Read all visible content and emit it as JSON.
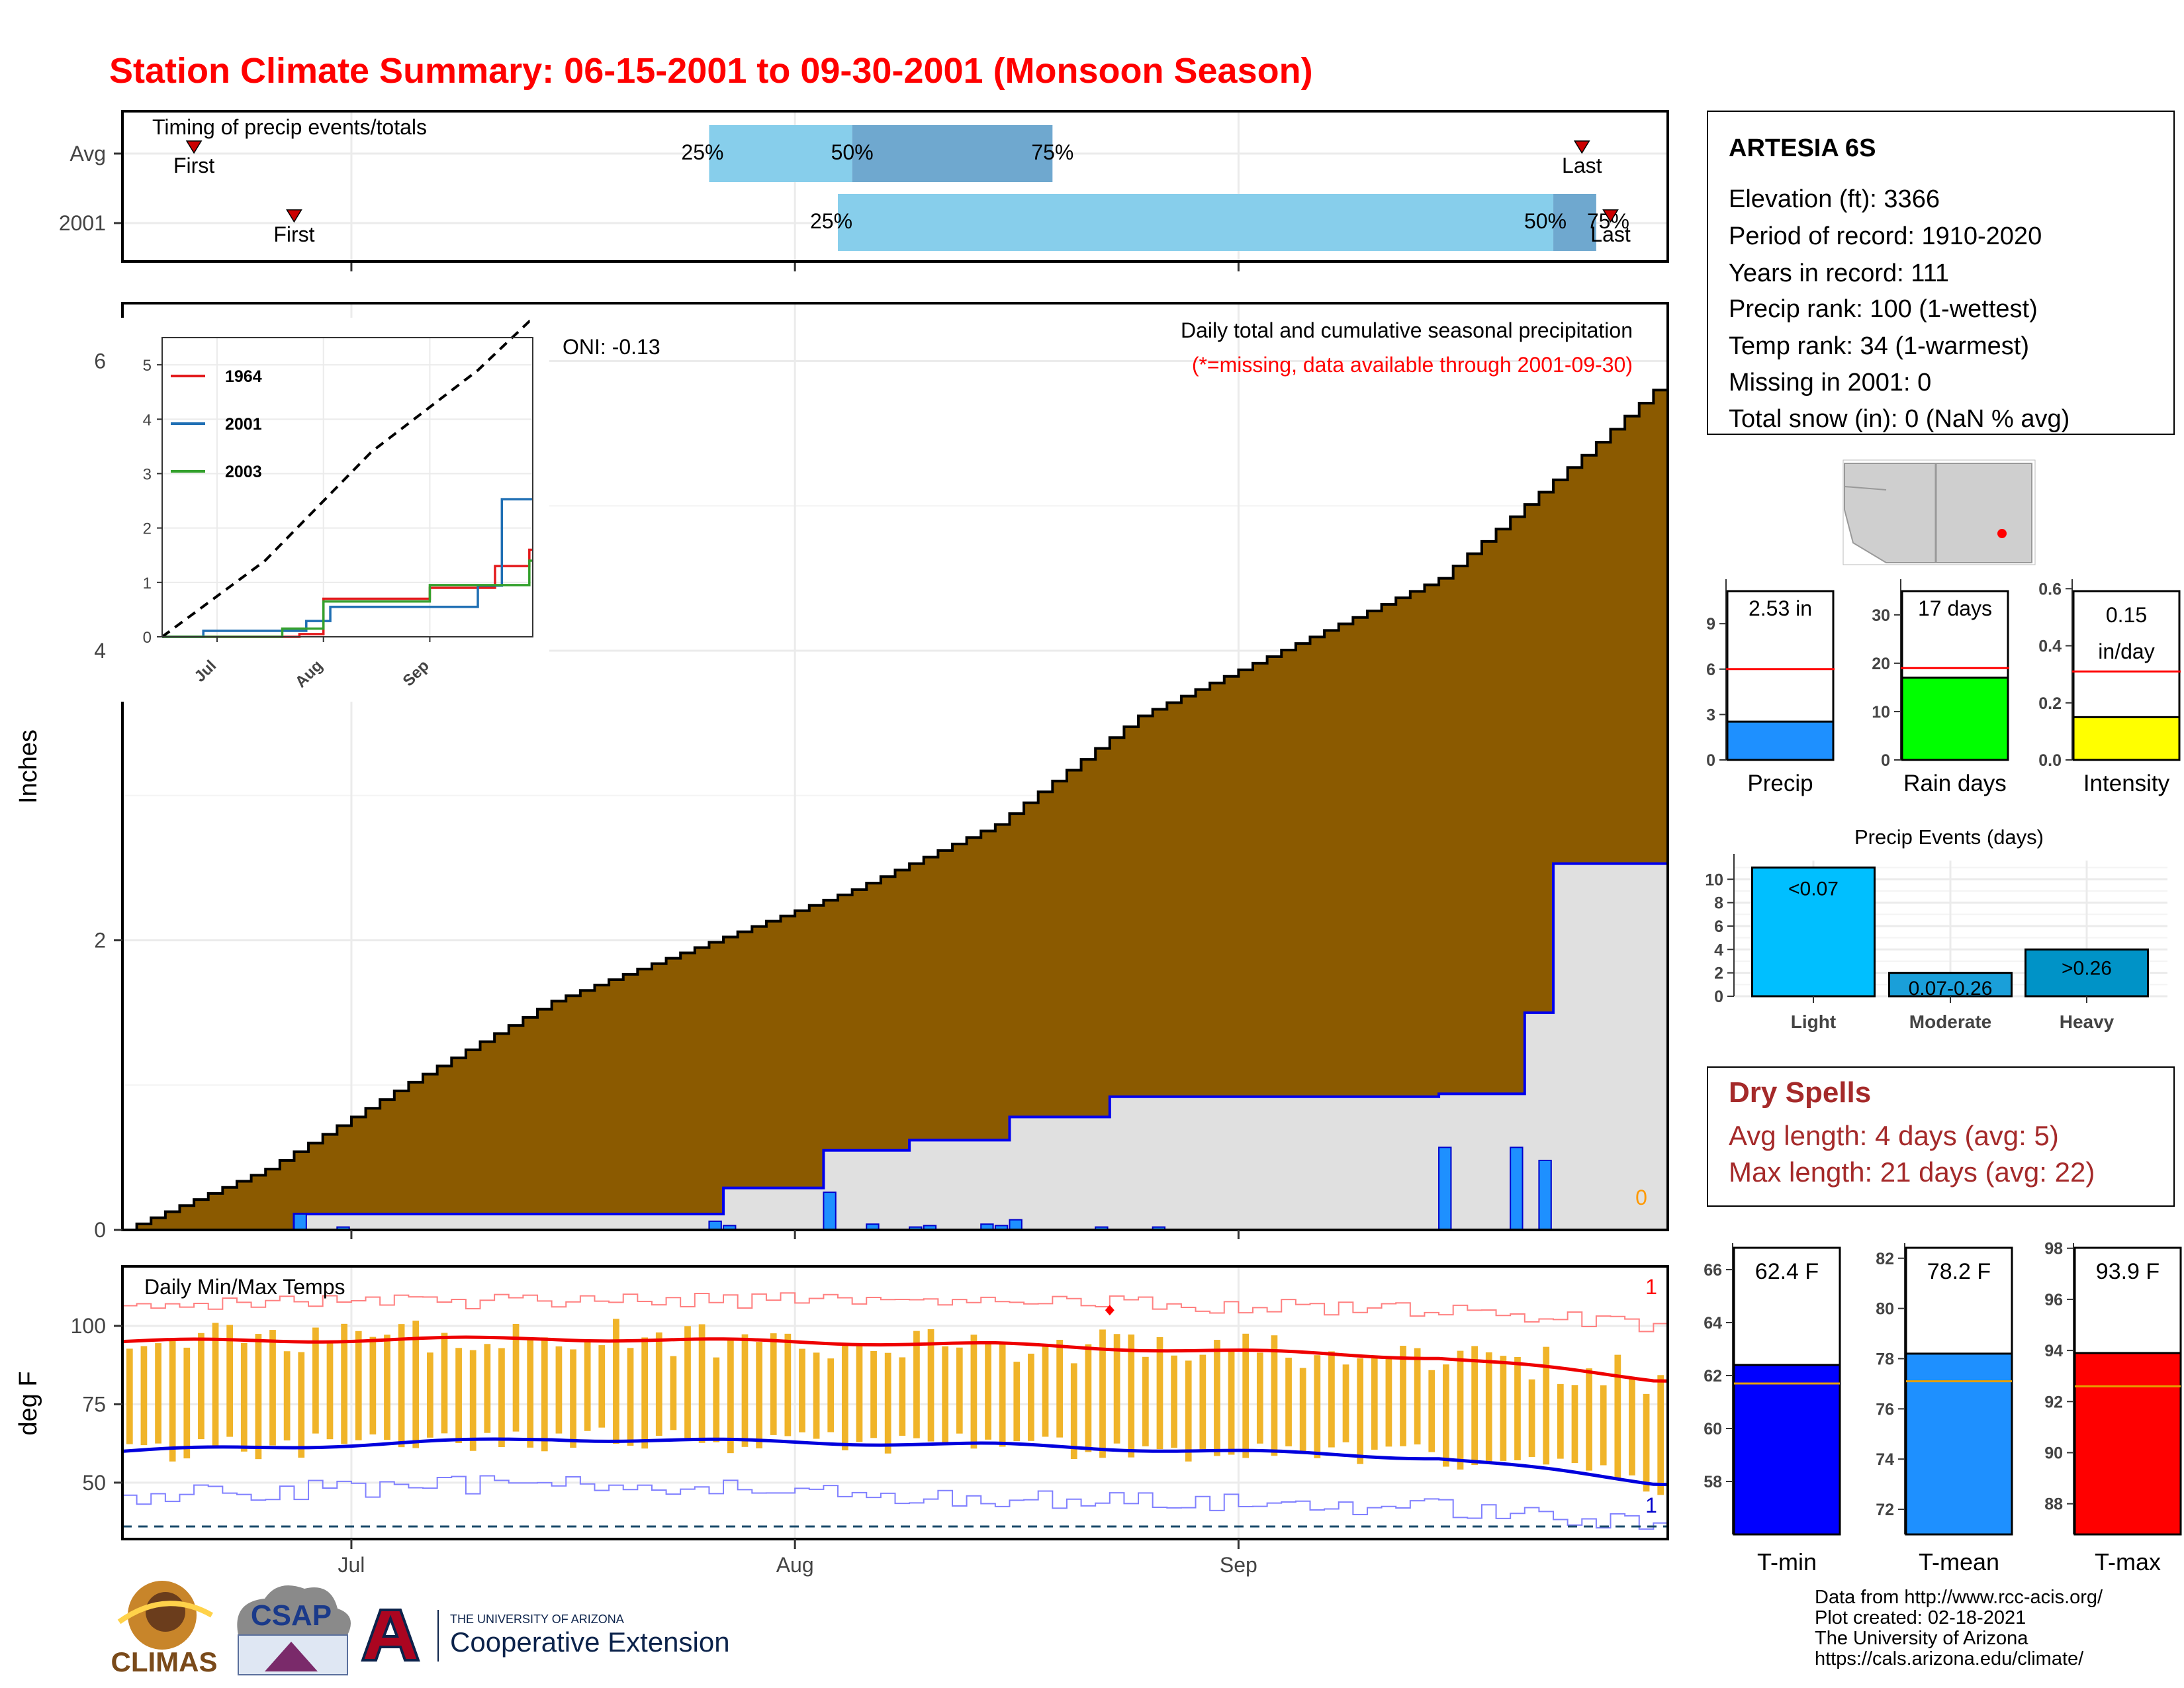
{
  "title": "Station Climate Summary: 06-15-2001 to 09-30-2001 (Monsoon Season)",
  "timing": {
    "title": "Timing of precip events/totals",
    "rows": [
      {
        "label": "Avg",
        "first_label": "First",
        "first_date": "06-20",
        "p25": "07-26",
        "p50": "08-05",
        "p75": "08-19",
        "last_label": "Last",
        "last_date": "09-25"
      },
      {
        "label": "2001",
        "first_label": "First",
        "first_date": "06-27",
        "p25": "08-04",
        "p50": "09-23",
        "p75": "09-26",
        "last_label": "Last",
        "last_date": "09-27"
      }
    ],
    "pct_labels": [
      "25%",
      "50%",
      "75%"
    ]
  },
  "precip_panel": {
    "ylabel": "Inches",
    "yticks": [
      0,
      2,
      4,
      6
    ],
    "ylim": [
      0,
      6.4
    ],
    "caption": "Daily total and cumulative seasonal precipitation",
    "note": "(*=missing, data available through 2001-09-30)",
    "oni": "ONI: -0.13",
    "missing_count": "0"
  },
  "inset": {
    "yticks": [
      "0",
      "1",
      "2",
      "3",
      "4",
      "5"
    ],
    "xticks": [
      "Jul",
      "Aug",
      "Sep"
    ],
    "legend": [
      {
        "label": "1964",
        "color": "#e31a1c"
      },
      {
        "label": "2001",
        "color": "#1f6fb4"
      },
      {
        "label": "2003",
        "color": "#33a02c"
      }
    ]
  },
  "temp_panel": {
    "title": "Daily Min/Max Temps",
    "ylabel": "deg F",
    "yticks": [
      "50",
      "75",
      "100"
    ],
    "max_count": "1",
    "min_count": "1"
  },
  "x_months": [
    "Jul",
    "Aug",
    "Sep"
  ],
  "station": {
    "name": "ARTESIA 6S",
    "lines": [
      "Elevation (ft): 3366",
      "Period of record: 1910-2020",
      "Years in record: 111",
      "Precip rank: 100 (1-wettest)",
      "Temp rank: 34 (1-warmest)",
      "Missing in 2001: 0",
      "Total snow (in): 0 (NaN % avg)"
    ]
  },
  "summary_bars": [
    {
      "label": "Precip",
      "value_text": "2.53 in",
      "value": 2.53,
      "avg": 6.0,
      "ymax": 11.5,
      "ticks": [
        "0",
        "3",
        "6",
        "9"
      ],
      "tick_vals": [
        0,
        3,
        6,
        9
      ],
      "color": "#1e90ff"
    },
    {
      "label": "Rain days",
      "value_text": "17 days",
      "value": 17,
      "avg": 19,
      "ymax": 36,
      "ticks": [
        "0",
        "10",
        "20",
        "30"
      ],
      "tick_vals": [
        0,
        10,
        20,
        30
      ],
      "color": "#00ff00"
    },
    {
      "label": "Intensity",
      "value_text": "0.15",
      "value_text2": "in/day",
      "value": 0.15,
      "avg": 0.31,
      "ymax": 0.61,
      "ticks": [
        "0.0",
        "0.2",
        "0.4",
        "0.6"
      ],
      "tick_vals": [
        0,
        0.2,
        0.4,
        0.6
      ],
      "color": "#ffff00"
    }
  ],
  "precip_events": {
    "title": "Precip Events (days)",
    "yticks": [
      "0",
      "2",
      "4",
      "6",
      "8",
      "10"
    ],
    "categories": [
      "Light",
      "Moderate",
      "Heavy"
    ],
    "bar_labels": [
      "<0.07",
      "0.07-0.26",
      ">0.26"
    ],
    "values": [
      11,
      2,
      4
    ],
    "colors": [
      "#00bfff",
      "#1a9fd9",
      "#0093c7"
    ]
  },
  "dry_spells": {
    "title": "Dry Spells",
    "avg_line": "Avg length: 4 days (avg: 5)",
    "max_line": "Max length: 21 days (avg: 22)"
  },
  "temp_bars": [
    {
      "label": "T-min",
      "value_text": "62.4 F",
      "value": 62.4,
      "avg": 61.7,
      "ymin": 56,
      "ymax": 67,
      "ticks": [
        "58",
        "60",
        "62",
        "64",
        "66"
      ],
      "tick_vals": [
        58,
        60,
        62,
        64,
        66
      ],
      "color": "#0000ff"
    },
    {
      "label": "T-mean",
      "value_text": "78.2 F",
      "value": 78.2,
      "avg": 77.1,
      "ymin": 71,
      "ymax": 82.6,
      "ticks": [
        "72",
        "74",
        "76",
        "78",
        "80",
        "82"
      ],
      "tick_vals": [
        72,
        74,
        76,
        78,
        80,
        82
      ],
      "color": "#1e90ff"
    },
    {
      "label": "T-max",
      "value_text": "93.9 F",
      "value": 93.9,
      "avg": 92.6,
      "ymin": 86.8,
      "ymax": 98.2,
      "ticks": [
        "88",
        "90",
        "92",
        "94",
        "96",
        "98"
      ],
      "tick_vals": [
        88,
        90,
        92,
        94,
        96,
        98
      ],
      "color": "#ff0000"
    }
  ],
  "credits": [
    "Data from http://www.rcc-acis.org/",
    "Plot created: 02-18-2021",
    "The University of Arizona",
    "https://cals.arizona.edu/climate/"
  ],
  "logos": {
    "climas": "CLIMAS",
    "csap": "CSAP",
    "ua_small": "THE UNIVERSITY OF ARIZONA",
    "ua_big": "Cooperative Extension"
  },
  "chart_data": [
    {
      "type": "area",
      "title": "Daily total and cumulative seasonal precipitation",
      "xlabel": "",
      "ylabel": "Inches",
      "ylim": [
        0,
        6.4
      ],
      "x_range": [
        "2001-06-15",
        "2001-09-30"
      ],
      "series": [
        {
          "name": "",
          "description": "",
          "x": [
            "06-15",
            "06-25",
            "07-05",
            "07-15",
            "07-25",
            "08-05",
            "08-15",
            "08-25",
            "09-05",
            "09-15",
            "09-25",
            "09-30"
          ],
          "values": [
            0.0,
            0.42,
            1.02,
            1.58,
            1.95,
            2.35,
            2.8,
            3.55,
            4.05,
            4.5,
            5.35,
            5.8
          ]
        },
        {
          "name": "",
          "x": [
            "06-15",
            "06-27",
            "07-27",
            "08-03",
            "08-09",
            "08-16",
            "08-23",
            "09-15",
            "09-21",
            "09-23",
            "09-30"
          ],
          "values": [
            0.0,
            0.11,
            0.29,
            0.55,
            0.62,
            0.78,
            0.92,
            0.94,
            1.5,
            2.53,
            2.53
          ]
        },
        {
          "name": "",
          "x": [
            "06-27",
            "06-30",
            "07-26",
            "07-27",
            "08-03",
            "08-06",
            "08-09",
            "08-10",
            "08-14",
            "08-15",
            "08-16",
            "08-22",
            "08-26",
            "09-15",
            "09-20",
            "09-22"
          ],
          "values": [
            0.11,
            0.02,
            0.06,
            0.03,
            0.26,
            0.04,
            0.02,
            0.03,
            0.04,
            0.03,
            0.07,
            0.02,
            0.02,
            0.57,
            0.57,
            0.48
          ]
        }
      ]
    },
    {
      "type": "line",
      "title": "",
      "xticks": [
        "Jul",
        "Aug",
        "Sep"
      ],
      "ylim": [
        0,
        5.5
      ],
      "series": [
        {
          "name": "1964",
          "x": [
            "06-15",
            "07-25",
            "08-01",
            "09-01",
            "09-20",
            "09-30"
          ],
          "values": [
            0,
            0.05,
            0.7,
            0.9,
            1.3,
            1.6
          ]
        },
        {
          "name": "2001",
          "x": [
            "06-15",
            "06-27",
            "07-27",
            "08-03",
            "09-15",
            "09-22",
            "09-30"
          ],
          "values": [
            0,
            0.11,
            0.29,
            0.55,
            0.94,
            2.53,
            2.53
          ]
        },
        {
          "name": "2003",
          "x": [
            "06-15",
            "07-20",
            "08-01",
            "09-01",
            "09-30"
          ],
          "values": [
            0,
            0.15,
            0.65,
            0.95,
            1.4
          ]
        },
        {
          "name": "",
          "x": [
            "06-15",
            "07-15",
            "08-15",
            "09-15",
            "09-30"
          ],
          "values": [
            0,
            1.4,
            3.4,
            4.9,
            5.8
          ]
        }
      ]
    },
    {
      "type": "line",
      "title": "Daily Min/Max Temps",
      "ylabel": "deg F",
      "ylim": [
        32,
        119
      ],
      "series": [
        {
          "name": "",
          "x": [
            "06-15",
            "07-15",
            "08-15",
            "09-15",
            "09-30"
          ],
          "values": [
            95,
            96,
            94,
            90,
            83
          ]
        },
        {
          "name": "",
          "x": [
            "06-15",
            "07-15",
            "08-15",
            "09-15",
            "09-30"
          ],
          "values": [
            60,
            64,
            62,
            58,
            50
          ]
        },
        {
          "name": "",
          "x": [
            "06-15",
            "07-15",
            "08-15",
            "09-15",
            "09-30"
          ],
          "values": [
            107,
            108,
            108,
            105,
            100
          ]
        },
        {
          "name": "",
          "x": [
            "06-15",
            "07-15",
            "08-15",
            "09-15",
            "09-30"
          ],
          "values": [
            46,
            50,
            45,
            42,
            36
          ]
        },
        {
          "name": "",
          "values": [
            36
          ]
        }
      ]
    }
  ]
}
